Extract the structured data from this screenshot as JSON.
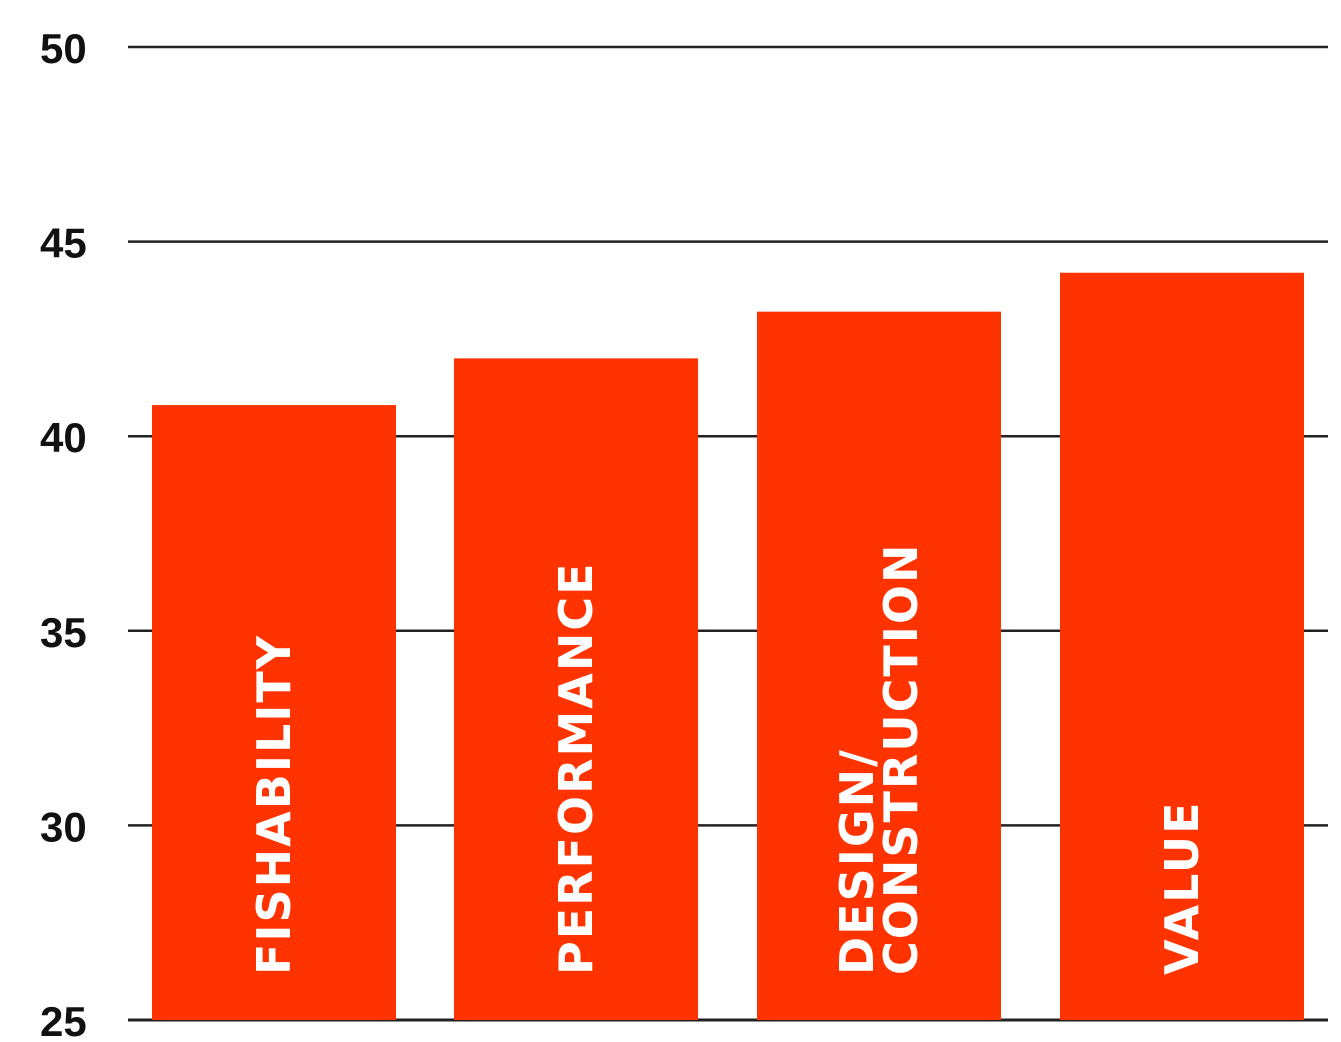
{
  "chart_data": {
    "type": "bar",
    "categories": [
      "FISHABILITY",
      "PERFORMANCE",
      "DESIGN/\nCONSTRUCTION",
      "VALUE"
    ],
    "values": [
      40.8,
      42.0,
      43.2,
      44.2
    ],
    "ylim": [
      25,
      50
    ],
    "yticks": [
      "50",
      "45",
      "40",
      "35",
      "30",
      "25"
    ],
    "ytick_values": [
      50,
      45,
      40,
      35,
      30,
      25
    ],
    "grid": true,
    "bar_color": "#ff3300",
    "grid_color": "#222222",
    "label_orientation": "vertical, inside bars"
  }
}
